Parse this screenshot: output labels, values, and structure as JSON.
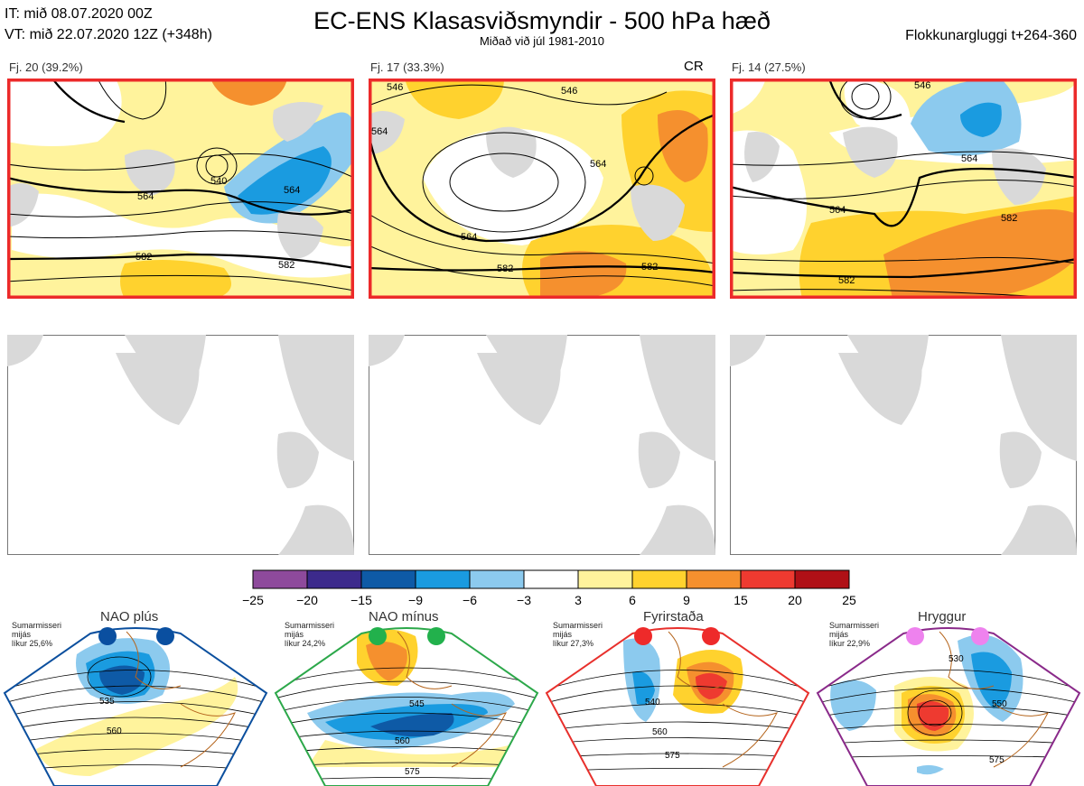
{
  "header": {
    "it_line": "IT: mið 08.07.2020 00Z",
    "vt_line": "VT: mið 22.07.2020 12Z  (+348h)",
    "title": "EC-ENS Klasasviðsmyndir - 500 hPa hæð",
    "subtitle": "Miðað við júl 1981-2010",
    "window": "Flokkunargluggi t+264-360"
  },
  "clusters": [
    {
      "label": "Fj. 20 (39.2%)",
      "tag": "",
      "contours": [
        "564",
        "564",
        "582",
        "582",
        "540"
      ]
    },
    {
      "label": "Fj. 17 (33.3%)",
      "tag": "CR",
      "contours": [
        "546",
        "546",
        "564",
        "564",
        "582",
        "582",
        "564"
      ]
    },
    {
      "label": "Fj. 14 (27.5%)",
      "tag": "",
      "contours": [
        "546",
        "564",
        "564",
        "582",
        "582"
      ]
    }
  ],
  "colorbar": {
    "ticks": [
      "−25",
      "−20",
      "−15",
      "−9",
      "−6",
      "−3",
      "3",
      "6",
      "9",
      "15",
      "20",
      "25"
    ],
    "colors": [
      "#8e4a9c",
      "#3c2a8c",
      "#0e5aa6",
      "#1a9be0",
      "#8ccaee",
      "#ffffff",
      "#fff39c",
      "#ffd22e",
      "#f5902e",
      "#ee3a30",
      "#b01016"
    ]
  },
  "regimes": [
    {
      "title": "NAO plús",
      "note_lines": [
        "Sumarmisseri",
        "mijás",
        "líkur 25,6%"
      ],
      "dot_color": "#0a4fa0",
      "frame_color": "#0b4f9e",
      "labels": [
        "535",
        "560"
      ]
    },
    {
      "title": "NAO mínus",
      "note_lines": [
        "Sumarmisseri",
        "mijás",
        "líkur 24,2%"
      ],
      "dot_color": "#22b14c",
      "frame_color": "#2ca84a",
      "labels": [
        "545",
        "560",
        "575"
      ]
    },
    {
      "title": "Fyrirstaða",
      "note_lines": [
        "Sumarmisseri",
        "mijás",
        "líkur 27,3%"
      ],
      "dot_color": "#ee2a2a",
      "frame_color": "#e8302c",
      "labels": [
        "540",
        "560",
        "575"
      ]
    },
    {
      "title": "Hryggur",
      "note_lines": [
        "Sumarmisseri",
        "mijás",
        "líkur 22,9%"
      ],
      "dot_color": "#ee82ee",
      "frame_color": "#8a2a8a",
      "labels": [
        "530",
        "550",
        "575"
      ]
    }
  ]
}
